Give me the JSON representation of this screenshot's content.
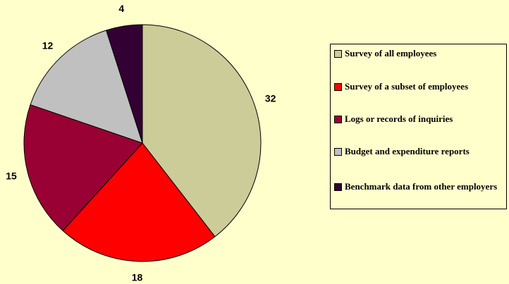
{
  "chart_data": {
    "type": "pie",
    "categories": [
      "Survey of all employees",
      "Survey of a subset of employees",
      "Logs or records of inquiries",
      "Budget and expenditure reports",
      "Benchmark data from other employers"
    ],
    "values": [
      32,
      18,
      15,
      12,
      4
    ],
    "colors": [
      "#cccc99",
      "#ff0000",
      "#990033",
      "#c0c0c0",
      "#330033"
    ],
    "legend": "right"
  }
}
